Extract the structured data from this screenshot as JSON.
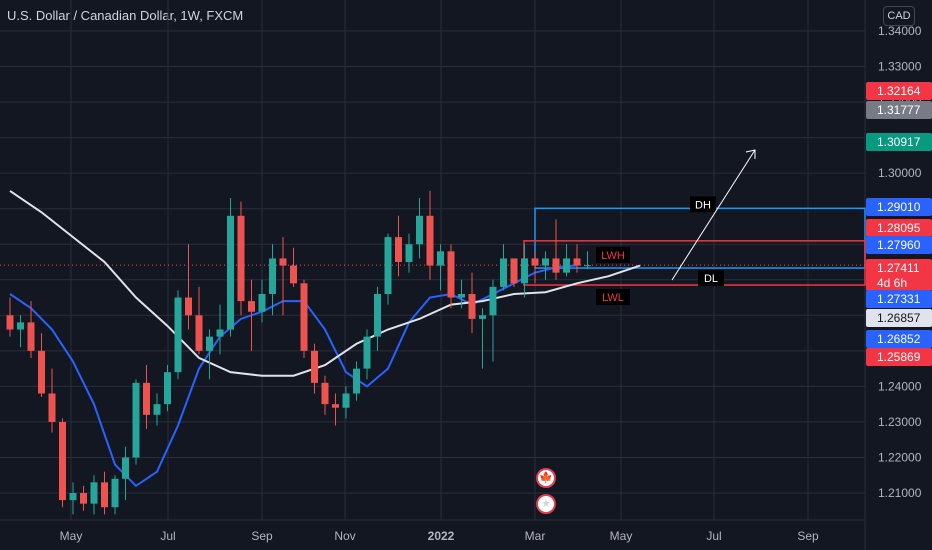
{
  "header": {
    "title": "U.S. Dollar / Canadian Dollar, 1W, FXCM",
    "currency": "CAD"
  },
  "colors": {
    "background": "#131722",
    "up": "#26a69a",
    "down": "#ef5350",
    "blue_ma": "#2962ff",
    "white_ma": "#e0e3eb",
    "box_blue": "#2196f3",
    "box_red": "#f23645",
    "grid": "#2a2e39"
  },
  "icons": {
    "flag_ca": "canada-flag-icon",
    "flag_us": "us-flag-icon"
  },
  "chart_data": {
    "type": "candlestick",
    "title": "U.S. Dollar / Canadian Dollar, 1W, FXCM",
    "xlabel": "",
    "ylabel": "",
    "ylim": [
      1.2025,
      1.346
    ],
    "y_ticks": [
      "1.34000",
      "1.33000",
      "1.32000",
      "1.31000",
      "1.30000",
      "1.29000",
      "1.28000",
      "1.27000",
      "1.26000",
      "1.25000",
      "1.24000",
      "1.23000",
      "1.22000",
      "1.21000"
    ],
    "x_ticks": [
      "May",
      "Jul",
      "Sep",
      "Nov",
      "2022",
      "Mar",
      "May",
      "Jul",
      "Sep"
    ],
    "grid": true,
    "candles": [
      {
        "o": 1.26,
        "h": 1.265,
        "l": 1.254,
        "c": 1.256
      },
      {
        "o": 1.256,
        "h": 1.26,
        "l": 1.251,
        "c": 1.258
      },
      {
        "o": 1.258,
        "h": 1.264,
        "l": 1.248,
        "c": 1.25
      },
      {
        "o": 1.25,
        "h": 1.255,
        "l": 1.237,
        "c": 1.238
      },
      {
        "o": 1.238,
        "h": 1.245,
        "l": 1.227,
        "c": 1.23
      },
      {
        "o": 1.23,
        "h": 1.231,
        "l": 1.206,
        "c": 1.208
      },
      {
        "o": 1.208,
        "h": 1.213,
        "l": 1.204,
        "c": 1.21
      },
      {
        "o": 1.21,
        "h": 1.212,
        "l": 1.205,
        "c": 1.207
      },
      {
        "o": 1.207,
        "h": 1.215,
        "l": 1.204,
        "c": 1.213
      },
      {
        "o": 1.213,
        "h": 1.216,
        "l": 1.204,
        "c": 1.206
      },
      {
        "o": 1.206,
        "h": 1.215,
        "l": 1.204,
        "c": 1.214
      },
      {
        "o": 1.214,
        "h": 1.223,
        "l": 1.208,
        "c": 1.22
      },
      {
        "o": 1.22,
        "h": 1.242,
        "l": 1.218,
        "c": 1.241
      },
      {
        "o": 1.241,
        "h": 1.246,
        "l": 1.228,
        "c": 1.232
      },
      {
        "o": 1.232,
        "h": 1.238,
        "l": 1.229,
        "c": 1.235
      },
      {
        "o": 1.235,
        "h": 1.246,
        "l": 1.233,
        "c": 1.244
      },
      {
        "o": 1.244,
        "h": 1.267,
        "l": 1.242,
        "c": 1.265
      },
      {
        "o": 1.265,
        "h": 1.28,
        "l": 1.256,
        "c": 1.26
      },
      {
        "o": 1.26,
        "h": 1.268,
        "l": 1.249,
        "c": 1.25
      },
      {
        "o": 1.25,
        "h": 1.256,
        "l": 1.242,
        "c": 1.254
      },
      {
        "o": 1.254,
        "h": 1.263,
        "l": 1.249,
        "c": 1.256
      },
      {
        "o": 1.256,
        "h": 1.293,
        "l": 1.254,
        "c": 1.288
      },
      {
        "o": 1.288,
        "h": 1.292,
        "l": 1.26,
        "c": 1.264
      },
      {
        "o": 1.264,
        "h": 1.27,
        "l": 1.25,
        "c": 1.261
      },
      {
        "o": 1.261,
        "h": 1.27,
        "l": 1.258,
        "c": 1.266
      },
      {
        "o": 1.266,
        "h": 1.28,
        "l": 1.26,
        "c": 1.276
      },
      {
        "o": 1.276,
        "h": 1.282,
        "l": 1.26,
        "c": 1.274
      },
      {
        "o": 1.274,
        "h": 1.279,
        "l": 1.268,
        "c": 1.269
      },
      {
        "o": 1.269,
        "h": 1.27,
        "l": 1.248,
        "c": 1.25
      },
      {
        "o": 1.25,
        "h": 1.252,
        "l": 1.238,
        "c": 1.241
      },
      {
        "o": 1.241,
        "h": 1.243,
        "l": 1.232,
        "c": 1.235
      },
      {
        "o": 1.235,
        "h": 1.238,
        "l": 1.229,
        "c": 1.234
      },
      {
        "o": 1.234,
        "h": 1.24,
        "l": 1.231,
        "c": 1.238
      },
      {
        "o": 1.238,
        "h": 1.247,
        "l": 1.236,
        "c": 1.245
      },
      {
        "o": 1.245,
        "h": 1.256,
        "l": 1.242,
        "c": 1.254
      },
      {
        "o": 1.254,
        "h": 1.268,
        "l": 1.25,
        "c": 1.266
      },
      {
        "o": 1.266,
        "h": 1.283,
        "l": 1.263,
        "c": 1.282
      },
      {
        "o": 1.282,
        "h": 1.288,
        "l": 1.271,
        "c": 1.275
      },
      {
        "o": 1.275,
        "h": 1.283,
        "l": 1.272,
        "c": 1.28
      },
      {
        "o": 1.28,
        "h": 1.293,
        "l": 1.276,
        "c": 1.288
      },
      {
        "o": 1.288,
        "h": 1.295,
        "l": 1.27,
        "c": 1.274
      },
      {
        "o": 1.274,
        "h": 1.28,
        "l": 1.267,
        "c": 1.278
      },
      {
        "o": 1.278,
        "h": 1.28,
        "l": 1.262,
        "c": 1.265
      },
      {
        "o": 1.265,
        "h": 1.27,
        "l": 1.262,
        "c": 1.266
      },
      {
        "o": 1.266,
        "h": 1.272,
        "l": 1.255,
        "c": 1.259
      },
      {
        "o": 1.259,
        "h": 1.262,
        "l": 1.245,
        "c": 1.26
      },
      {
        "o": 1.26,
        "h": 1.27,
        "l": 1.247,
        "c": 1.268
      },
      {
        "o": 1.268,
        "h": 1.28,
        "l": 1.267,
        "c": 1.276
      },
      {
        "o": 1.276,
        "h": 1.276,
        "l": 1.268,
        "c": 1.269
      },
      {
        "o": 1.269,
        "h": 1.28,
        "l": 1.265,
        "c": 1.276
      },
      {
        "o": 1.276,
        "h": 1.278,
        "l": 1.269,
        "c": 1.274
      },
      {
        "o": 1.274,
        "h": 1.278,
        "l": 1.27,
        "c": 1.276
      },
      {
        "o": 1.276,
        "h": 1.287,
        "l": 1.27,
        "c": 1.272
      },
      {
        "o": 1.272,
        "h": 1.28,
        "l": 1.271,
        "c": 1.276
      },
      {
        "o": 1.276,
        "h": 1.28,
        "l": 1.272,
        "c": 1.274
      },
      {
        "o": 1.274,
        "h": 1.278,
        "l": 1.273,
        "c": 1.2741
      }
    ],
    "series": [
      {
        "x": [
          0,
          2,
          4,
          6,
          8,
          10,
          12,
          14,
          16,
          18,
          20,
          22,
          24,
          26,
          28,
          30,
          32,
          34,
          36,
          38,
          40,
          42,
          44,
          46,
          48,
          50,
          52,
          54
        ],
        "values": [
          1.266,
          1.262,
          1.256,
          1.247,
          1.235,
          1.218,
          1.212,
          1.216,
          1.229,
          1.245,
          1.254,
          1.259,
          1.261,
          1.264,
          1.264,
          1.256,
          1.244,
          1.24,
          1.245,
          1.258,
          1.265,
          1.266,
          1.263,
          1.266,
          1.269,
          1.272,
          1.2735,
          1.2741
        ]
      },
      {
        "x": [
          0,
          3,
          6,
          9,
          12,
          15,
          18,
          21,
          24,
          27,
          30,
          33,
          36,
          39,
          42,
          45,
          48,
          51,
          54,
          57,
          60
        ],
        "values": [
          1.295,
          1.289,
          1.282,
          1.275,
          1.265,
          1.257,
          1.248,
          1.244,
          1.243,
          1.243,
          1.246,
          1.252,
          1.256,
          1.259,
          1.263,
          1.264,
          1.266,
          1.2665,
          1.269,
          1.271,
          1.274
        ]
      }
    ],
    "boxes": [
      {
        "top": 1.2901,
        "bottom": 1.2733,
        "label": "DH",
        "label2": "DL"
      },
      {
        "top": 1.28095,
        "bottom": 1.26852,
        "label": "LWH",
        "label2": "LWL"
      }
    ],
    "price_labels": [
      {
        "value": "1.32164",
        "kind": "red"
      },
      {
        "value": "1.31777",
        "kind": "gray"
      },
      {
        "value": "1.30917",
        "kind": "green"
      },
      {
        "value": "1.29010",
        "kind": "blue"
      },
      {
        "value": "1.28095",
        "kind": "pink"
      },
      {
        "value": "1.27960",
        "kind": "blue"
      },
      {
        "value": "1.27411",
        "kind": "red",
        "sub": "4d 6h"
      },
      {
        "value": "1.27331",
        "kind": "blue"
      },
      {
        "value": "1.26857",
        "kind": "white"
      },
      {
        "value": "1.26852",
        "kind": "blue"
      },
      {
        "value": "1.25869",
        "kind": "red"
      }
    ]
  }
}
